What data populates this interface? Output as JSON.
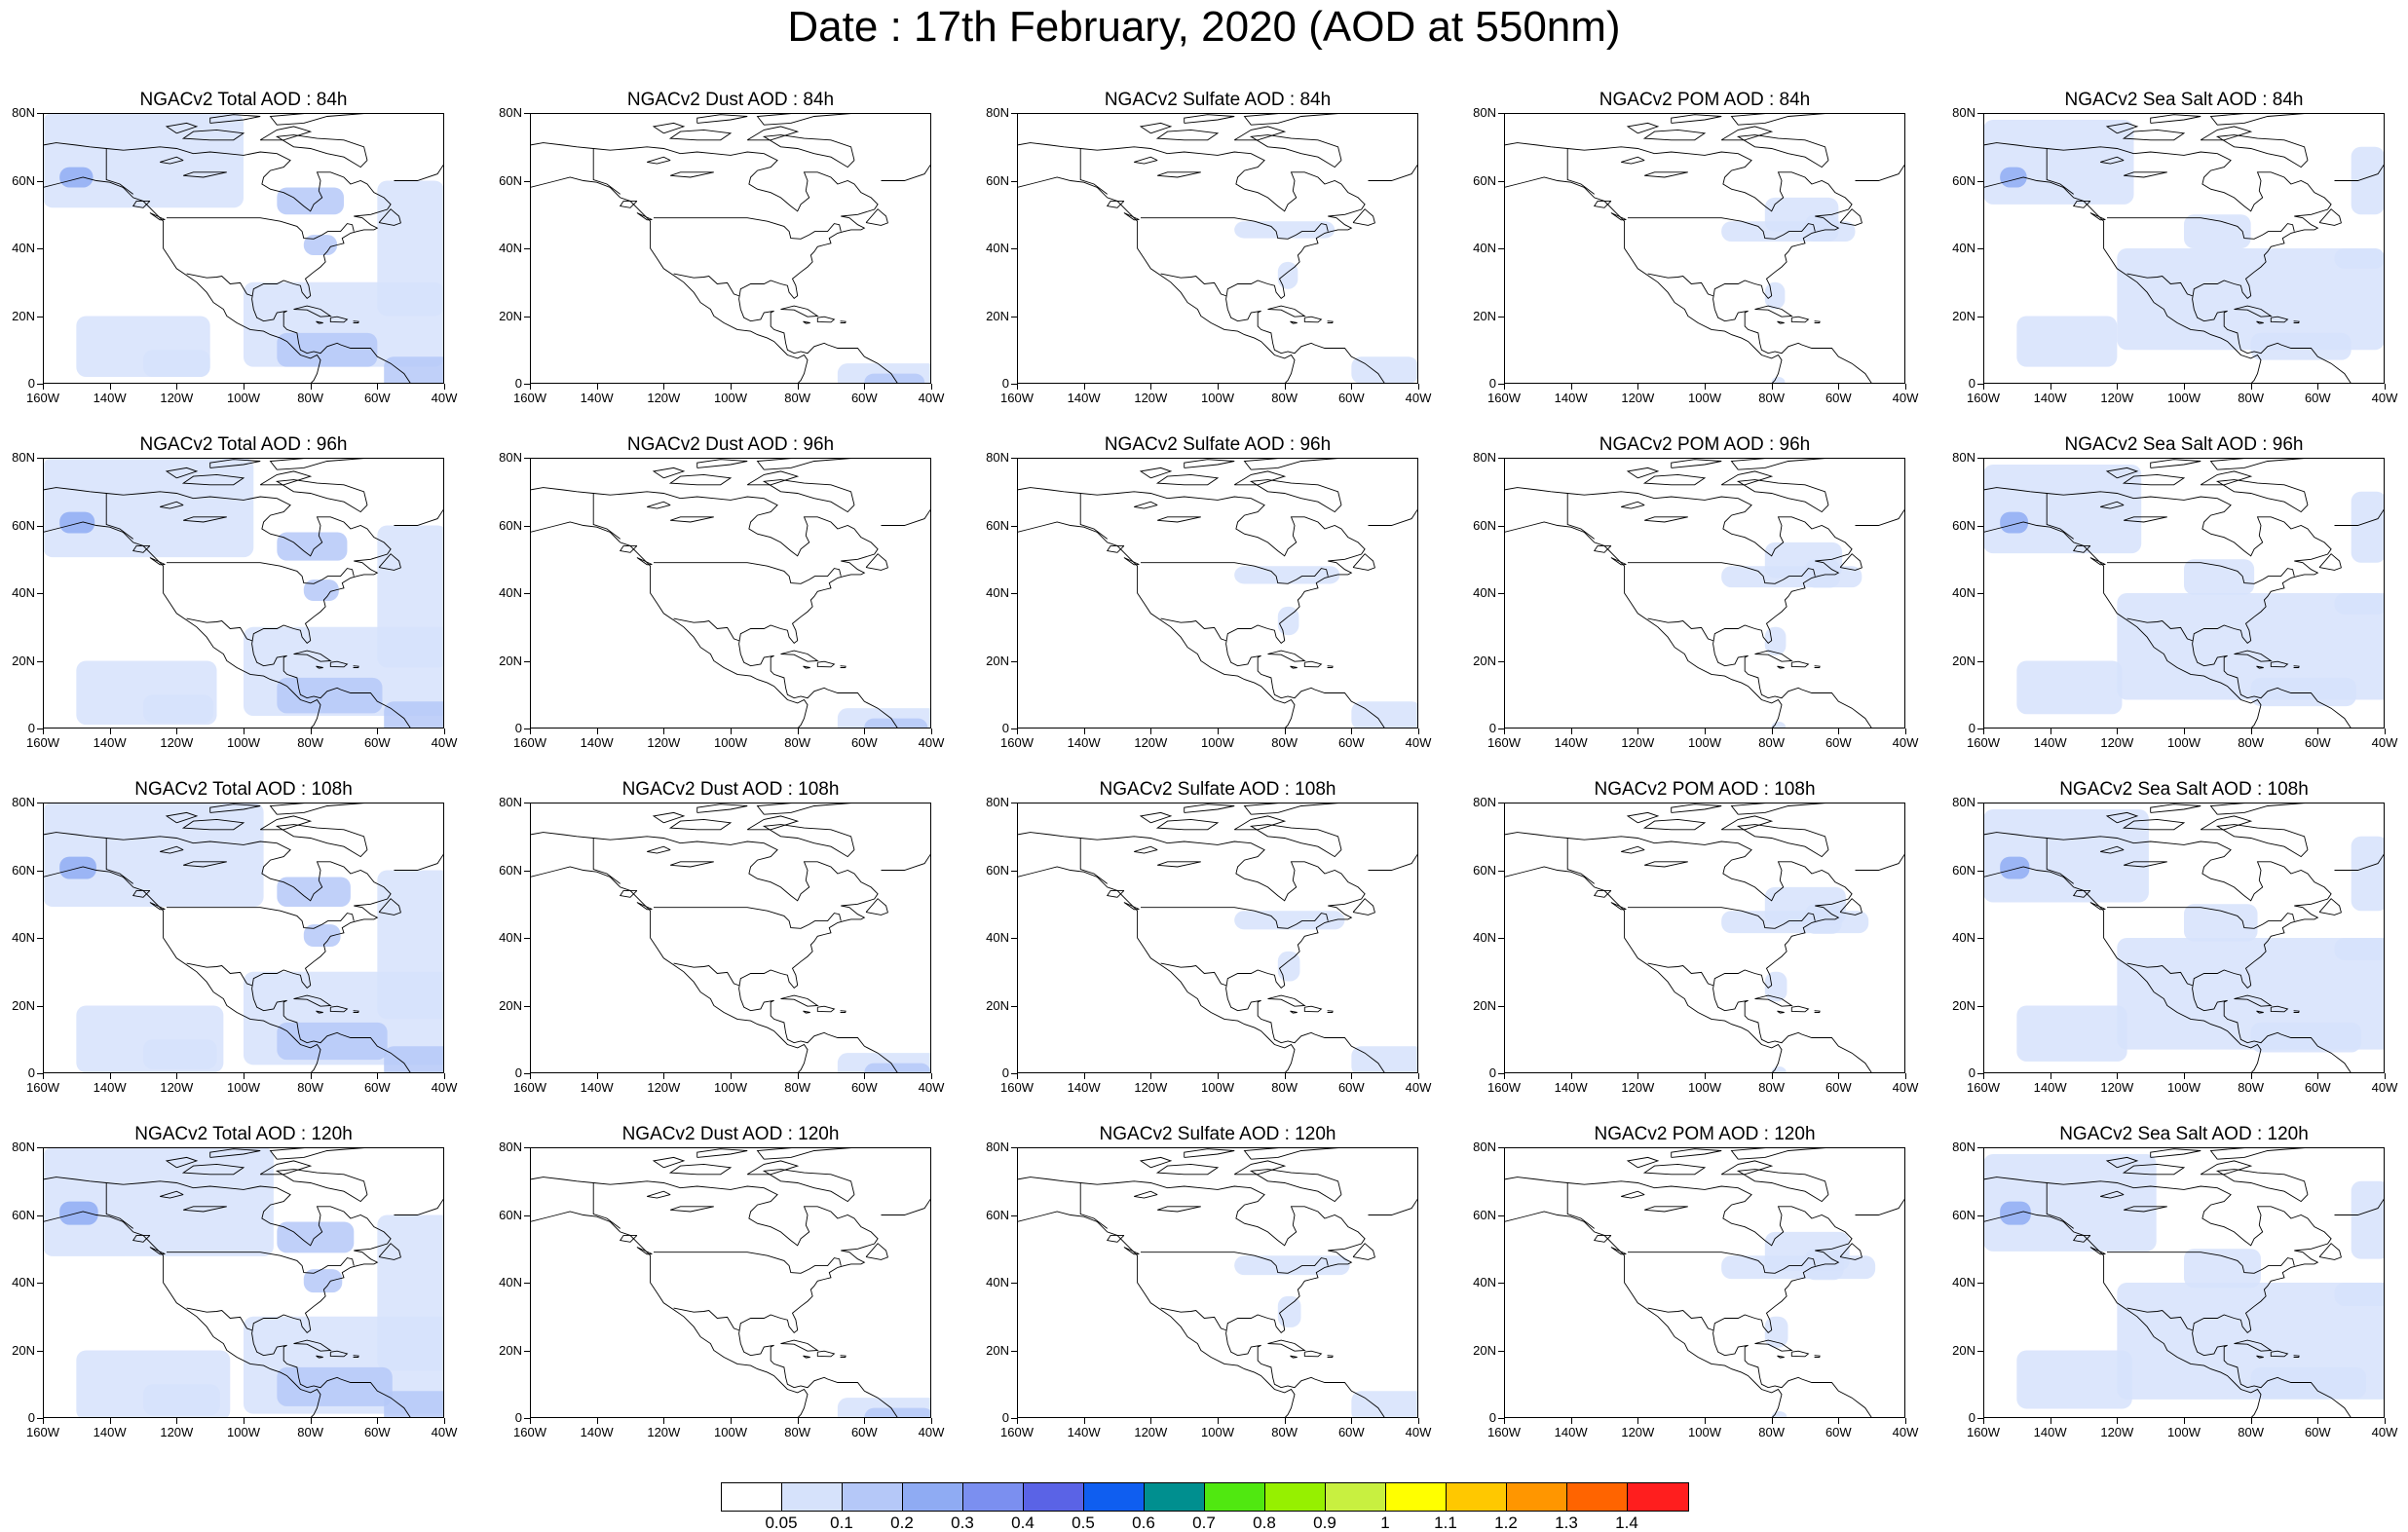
{
  "title": "Date : 17th February, 2020 (AOD at 550nm)",
  "panels": [
    {
      "title": "NGACv2 Total AOD : 84h",
      "var": "total",
      "hour": 84
    },
    {
      "title": "NGACv2 Dust AOD : 84h",
      "var": "dust",
      "hour": 84
    },
    {
      "title": "NGACv2 Sulfate AOD : 84h",
      "var": "sulfate",
      "hour": 84
    },
    {
      "title": "NGACv2 POM AOD : 84h",
      "var": "pom",
      "hour": 84
    },
    {
      "title": "NGACv2 Sea Salt AOD : 84h",
      "var": "seasalt",
      "hour": 84
    },
    {
      "title": "NGACv2 Total AOD : 96h",
      "var": "total",
      "hour": 96
    },
    {
      "title": "NGACv2 Dust AOD : 96h",
      "var": "dust",
      "hour": 96
    },
    {
      "title": "NGACv2 Sulfate AOD : 96h",
      "var": "sulfate",
      "hour": 96
    },
    {
      "title": "NGACv2 POM AOD : 96h",
      "var": "pom",
      "hour": 96
    },
    {
      "title": "NGACv2 Sea Salt AOD : 96h",
      "var": "seasalt",
      "hour": 96
    },
    {
      "title": "NGACv2 Total AOD : 108h",
      "var": "total",
      "hour": 108
    },
    {
      "title": "NGACv2 Dust AOD : 108h",
      "var": "dust",
      "hour": 108
    },
    {
      "title": "NGACv2 Sulfate AOD : 108h",
      "var": "sulfate",
      "hour": 108
    },
    {
      "title": "NGACv2 POM AOD : 108h",
      "var": "pom",
      "hour": 108
    },
    {
      "title": "NGACv2 Sea Salt AOD : 108h",
      "var": "seasalt",
      "hour": 108
    },
    {
      "title": "NGACv2 Total AOD : 120h",
      "var": "total",
      "hour": 120
    },
    {
      "title": "NGACv2 Dust AOD : 120h",
      "var": "dust",
      "hour": 120
    },
    {
      "title": "NGACv2 Sulfate AOD : 120h",
      "var": "sulfate",
      "hour": 120
    },
    {
      "title": "NGACv2 POM AOD : 120h",
      "var": "pom",
      "hour": 120
    },
    {
      "title": "NGACv2 Sea Salt  AOD : 120h",
      "var": "seasalt",
      "hour": 120
    }
  ],
  "axes": {
    "lat_labels": [
      "80N",
      "60N",
      "40N",
      "20N",
      "0"
    ],
    "lon_labels": [
      "160W",
      "140W",
      "120W",
      "100W",
      "80W",
      "60W",
      "40W"
    ]
  },
  "chart_data": {
    "type": "heatmap",
    "region": "North America",
    "lat_range": [
      0,
      80
    ],
    "lon_range": [
      -160,
      -40
    ],
    "colorbar": {
      "labels": [
        "0.05",
        "0.1",
        "0.2",
        "0.3",
        "0.4",
        "0.5",
        "0.6",
        "0.7",
        "0.8",
        "0.9",
        "1",
        "1.1",
        "1.2",
        "1.3",
        "1.4"
      ],
      "colors": [
        "#ffffff",
        "#d6e2fb",
        "#b5c8f8",
        "#8fabf3",
        "#7b8ff0",
        "#5a63e6",
        "#0f5ef0",
        "#008f8f",
        "#50e810",
        "#96f000",
        "#c8f040",
        "#ffff00",
        "#ffc800",
        "#ff9600",
        "#ff6400",
        "#ff1e1e"
      ]
    }
  }
}
